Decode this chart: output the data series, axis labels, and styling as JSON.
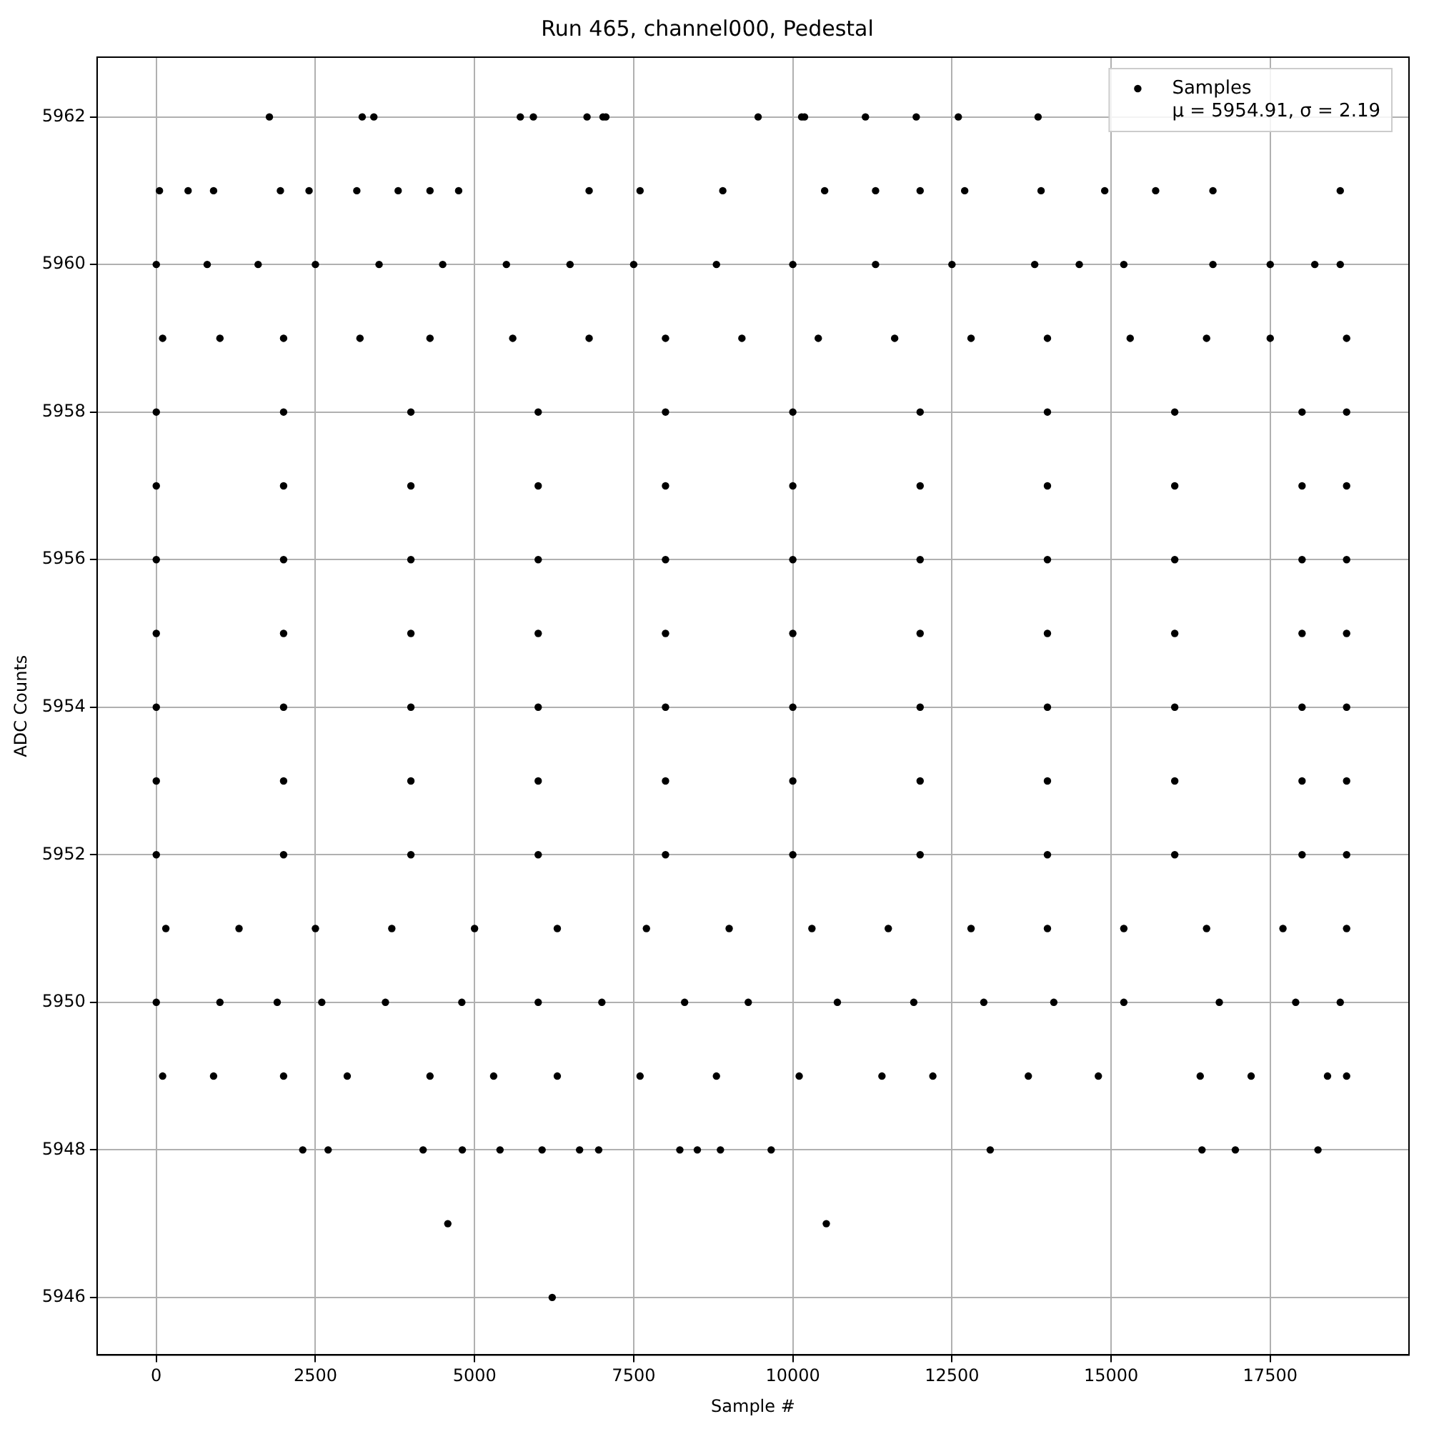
{
  "chart_data": {
    "type": "scatter",
    "title": "Run 465, channel000, Pedestal",
    "xlabel": "Sample #",
    "ylabel": "ADC Counts",
    "xlim": [
      -930,
      19680
    ],
    "xticks": [
      0,
      2500,
      5000,
      7500,
      10000,
      12500,
      15000,
      17500
    ],
    "ylim": [
      5945.22,
      5962.81
    ],
    "yticks": [
      5946,
      5948,
      5950,
      5952,
      5954,
      5956,
      5958,
      5960,
      5962
    ],
    "grid": true,
    "legend": "top right",
    "marker": "circle",
    "annotations": [
      "μ = 5954.91, σ = 2.19"
    ],
    "series": [
      {
        "name": "Samples",
        "color": "#000000",
        "x": [
          1777,
          3235,
          3418,
          5719,
          5924,
          6767,
          7018,
          7063,
          9455,
          10139,
          10184,
          11141,
          11939,
          12600,
          13853,
          50,
          500,
          900,
          1950,
          2400,
          3150,
          3800,
          4300,
          4750,
          6800,
          7600,
          8900,
          10500,
          11300,
          12000,
          12700,
          13900,
          14900,
          15700,
          16600,
          18600,
          0,
          800,
          1600,
          2500,
          3500,
          4500,
          5500,
          6500,
          7500,
          8800,
          10000,
          11300,
          12500,
          13800,
          14500,
          15200,
          16600,
          17500,
          18200,
          18600,
          100,
          1000,
          2000,
          3200,
          4300,
          5600,
          6800,
          8000,
          9200,
          10400,
          11600,
          12800,
          14000,
          15300,
          16500,
          17500,
          18700,
          0,
          2000,
          4000,
          6000,
          8000,
          10000,
          12000,
          14000,
          16000,
          18000,
          18700,
          0,
          2000,
          4000,
          6000,
          8000,
          10000,
          12000,
          14000,
          16000,
          18000,
          18700,
          0,
          2000,
          4000,
          6000,
          8000,
          10000,
          12000,
          14000,
          16000,
          18000,
          18700,
          0,
          2000,
          4000,
          6000,
          8000,
          10000,
          12000,
          14000,
          16000,
          18000,
          18700,
          0,
          2000,
          4000,
          6000,
          8000,
          10000,
          12000,
          14000,
          16000,
          18000,
          18700,
          0,
          2000,
          4000,
          6000,
          8000,
          10000,
          12000,
          14000,
          16000,
          18000,
          18700,
          0,
          2000,
          4000,
          6000,
          8000,
          10000,
          12000,
          14000,
          16000,
          18000,
          18700,
          150,
          1300,
          2500,
          3700,
          5000,
          6300,
          7700,
          9000,
          10300,
          11500,
          12800,
          14000,
          15200,
          16500,
          17700,
          18700,
          0,
          1000,
          1900,
          2600,
          3600,
          4800,
          6000,
          7000,
          8300,
          9300,
          10700,
          11900,
          13000,
          14100,
          15200,
          16700,
          17900,
          18600,
          100,
          900,
          2000,
          3000,
          4300,
          5300,
          6300,
          7600,
          8800,
          10100,
          11400,
          12200,
          13700,
          14800,
          16400,
          17200,
          18400,
          18700,
          2301,
          2700,
          4192,
          4808,
          5400,
          6061,
          6650,
          6950,
          8225,
          8500,
          8863,
          9660,
          13101,
          16428,
          16952,
          18250,
          4580,
          10526,
          6220
        ],
        "values": [
          5962,
          5962,
          5962,
          5962,
          5962,
          5962,
          5962,
          5962,
          5962,
          5962,
          5962,
          5962,
          5962,
          5962,
          5962,
          5961,
          5961,
          5961,
          5961,
          5961,
          5961,
          5961,
          5961,
          5961,
          5961,
          5961,
          5961,
          5961,
          5961,
          5961,
          5961,
          5961,
          5961,
          5961,
          5961,
          5961,
          5960,
          5960,
          5960,
          5960,
          5960,
          5960,
          5960,
          5960,
          5960,
          5960,
          5960,
          5960,
          5960,
          5960,
          5960,
          5960,
          5960,
          5960,
          5960,
          5960,
          5959,
          5959,
          5959,
          5959,
          5959,
          5959,
          5959,
          5959,
          5959,
          5959,
          5959,
          5959,
          5959,
          5959,
          5959,
          5959,
          5959,
          5958,
          5958,
          5958,
          5958,
          5958,
          5958,
          5958,
          5958,
          5958,
          5958,
          5958,
          5957,
          5957,
          5957,
          5957,
          5957,
          5957,
          5957,
          5957,
          5957,
          5957,
          5957,
          5956,
          5956,
          5956,
          5956,
          5956,
          5956,
          5956,
          5956,
          5956,
          5956,
          5956,
          5955,
          5955,
          5955,
          5955,
          5955,
          5955,
          5955,
          5955,
          5955,
          5955,
          5955,
          5954,
          5954,
          5954,
          5954,
          5954,
          5954,
          5954,
          5954,
          5954,
          5954,
          5954,
          5953,
          5953,
          5953,
          5953,
          5953,
          5953,
          5953,
          5953,
          5953,
          5953,
          5953,
          5952,
          5952,
          5952,
          5952,
          5952,
          5952,
          5952,
          5952,
          5952,
          5952,
          5952,
          5951,
          5951,
          5951,
          5951,
          5951,
          5951,
          5951,
          5951,
          5951,
          5951,
          5951,
          5951,
          5951,
          5951,
          5951,
          5951,
          5950,
          5950,
          5950,
          5950,
          5950,
          5950,
          5950,
          5950,
          5950,
          5950,
          5950,
          5950,
          5950,
          5950,
          5950,
          5950,
          5950,
          5950,
          5949,
          5949,
          5949,
          5949,
          5949,
          5949,
          5949,
          5949,
          5949,
          5949,
          5949,
          5949,
          5949,
          5949,
          5949,
          5949,
          5949,
          5949,
          5948,
          5948,
          5948,
          5948,
          5948,
          5948,
          5948,
          5948,
          5948,
          5948,
          5948,
          5948,
          5948,
          5948,
          5948,
          5948,
          5947,
          5947,
          5946
        ]
      }
    ]
  }
}
